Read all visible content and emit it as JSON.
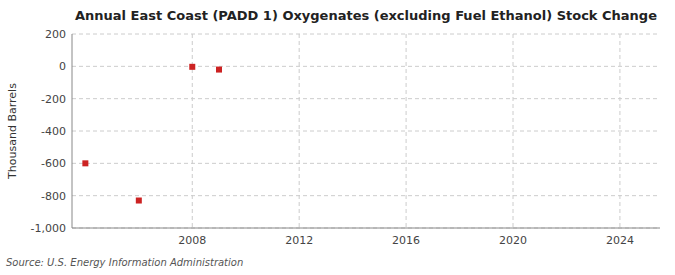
{
  "chart_data": {
    "type": "scatter",
    "title": "Annual East Coast (PADD 1) Oxygenates (excluding Fuel Ethanol) Stock Change",
    "y_label": "Thousand Barrels",
    "source": "Source: U.S. Energy Information Administration",
    "x": [
      2004,
      2006,
      2008,
      2009
    ],
    "values": [
      -600,
      -830,
      -3,
      -20
    ],
    "color": "#cc2222",
    "marker": "square",
    "xlim": [
      2003.5,
      2025.5
    ],
    "ylim": [
      -1000,
      200
    ],
    "xticks": [
      2008,
      2012,
      2016,
      2020,
      2024
    ],
    "yticks": [
      {
        "value": -1000,
        "label": "-1,000"
      },
      -800,
      -600,
      -400,
      -200,
      0,
      200
    ],
    "grid": true
  }
}
